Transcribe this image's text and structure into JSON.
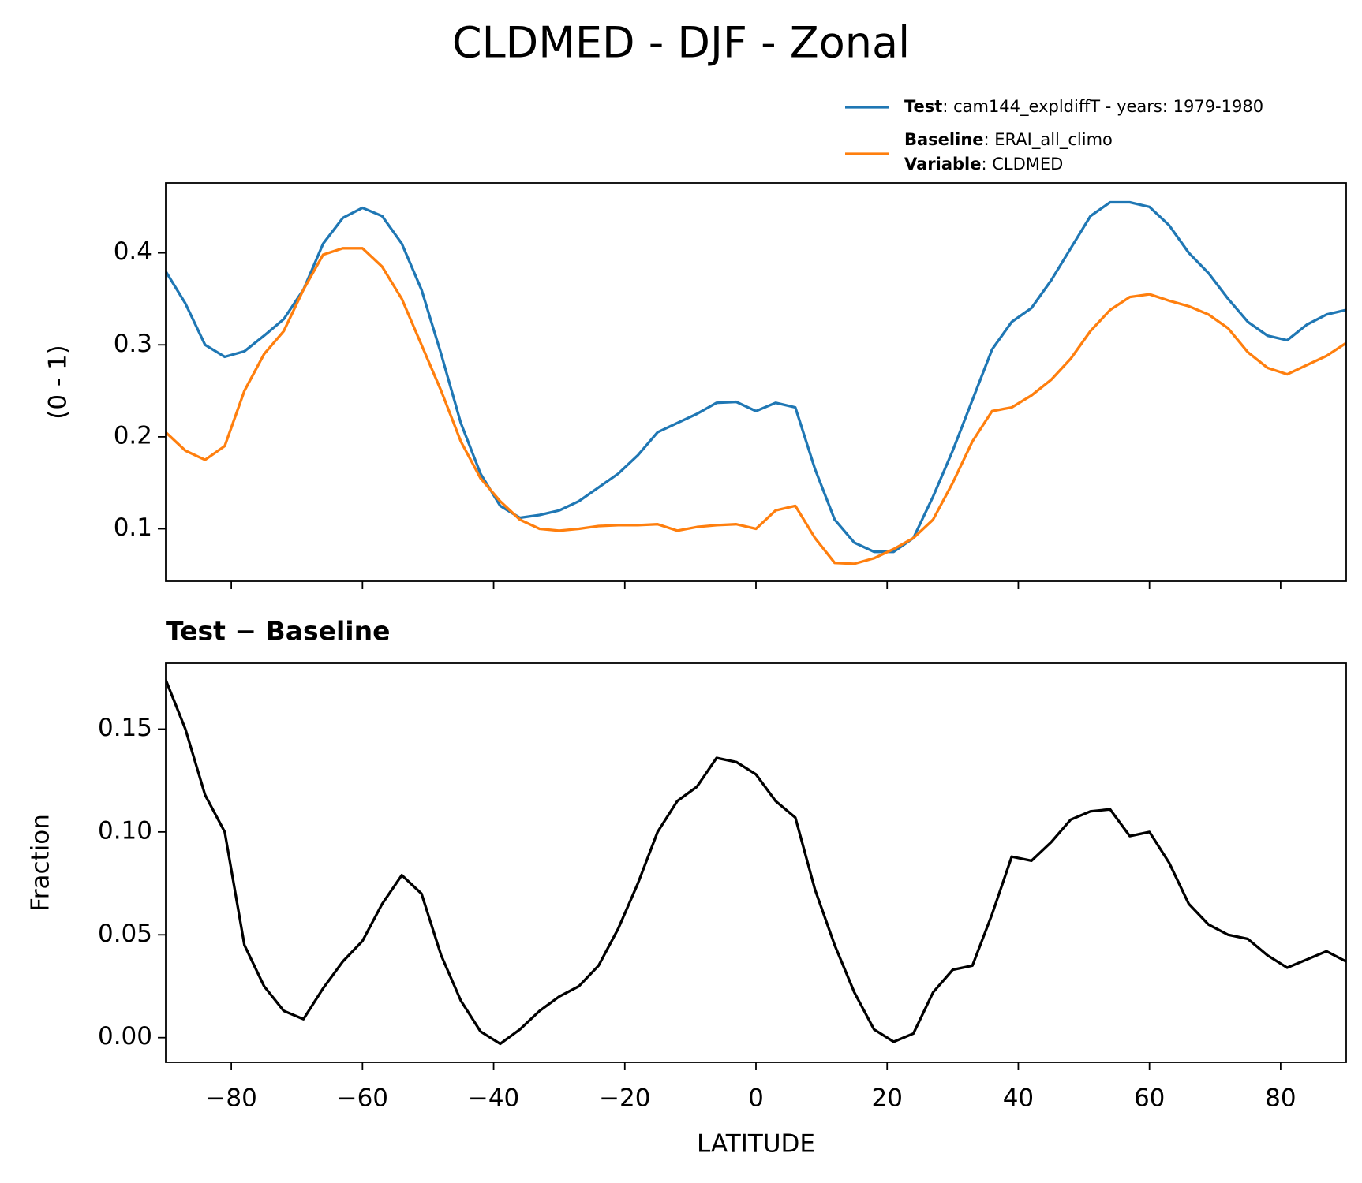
{
  "title": "CLDMED - DJF - Zonal",
  "chart_data": [
    {
      "type": "line",
      "ylabel": "(0 - 1)",
      "x": [
        -90,
        -87,
        -84,
        -81,
        -78,
        -75,
        -72,
        -69,
        -66,
        -63,
        -60,
        -57,
        -54,
        -51,
        -48,
        -45,
        -42,
        -39,
        -36,
        -33,
        -30,
        -27,
        -24,
        -21,
        -18,
        -15,
        -12,
        -9,
        -6,
        -3,
        0,
        3,
        6,
        9,
        12,
        15,
        18,
        21,
        24,
        27,
        30,
        33,
        36,
        39,
        42,
        45,
        48,
        51,
        54,
        57,
        60,
        63,
        66,
        69,
        72,
        75,
        78,
        81,
        84,
        87,
        90
      ],
      "series": [
        {
          "name": "Test",
          "label": ": cam144_expldiffT - years: 1979-1980",
          "color": "#1f77b4",
          "values": [
            0.38,
            0.345,
            0.3,
            0.287,
            0.293,
            0.31,
            0.328,
            0.36,
            0.41,
            0.438,
            0.449,
            0.44,
            0.41,
            0.36,
            0.29,
            0.215,
            0.16,
            0.125,
            0.112,
            0.115,
            0.12,
            0.13,
            0.145,
            0.16,
            0.18,
            0.205,
            0.215,
            0.225,
            0.237,
            0.238,
            0.228,
            0.237,
            0.232,
            0.165,
            0.11,
            0.085,
            0.075,
            0.075,
            0.09,
            0.135,
            0.185,
            0.24,
            0.295,
            0.325,
            0.34,
            0.37,
            0.405,
            0.44,
            0.455,
            0.455,
            0.45,
            0.43,
            0.4,
            0.378,
            0.35,
            0.325,
            0.31,
            0.305,
            0.322,
            0.333,
            0.338
          ]
        },
        {
          "name": "Baseline",
          "label": ": ERAI_all_climo",
          "color": "#ff7f0e",
          "values": [
            0.205,
            0.185,
            0.175,
            0.19,
            0.25,
            0.29,
            0.315,
            0.36,
            0.398,
            0.405,
            0.405,
            0.385,
            0.35,
            0.3,
            0.25,
            0.195,
            0.155,
            0.13,
            0.11,
            0.1,
            0.098,
            0.1,
            0.103,
            0.104,
            0.104,
            0.105,
            0.098,
            0.102,
            0.104,
            0.105,
            0.1,
            0.12,
            0.125,
            0.09,
            0.063,
            0.062,
            0.068,
            0.078,
            0.09,
            0.11,
            0.15,
            0.195,
            0.228,
            0.232,
            0.245,
            0.262,
            0.285,
            0.315,
            0.338,
            0.352,
            0.355,
            0.348,
            0.342,
            0.333,
            0.318,
            0.292,
            0.275,
            0.268,
            0.278,
            0.288,
            0.302
          ]
        }
      ],
      "legend_note": {
        "name": "Variable",
        "label": ": CLDMED"
      },
      "xlim": [
        -90,
        90
      ],
      "xticks": [
        -80,
        -60,
        -40,
        -20,
        0,
        20,
        40,
        60,
        80
      ],
      "ylim": [
        0.043,
        0.476
      ],
      "yticks": [
        0.1,
        0.2,
        0.3,
        0.4
      ]
    },
    {
      "type": "line",
      "title": "Test − Baseline",
      "ylabel": "Fraction",
      "xlabel": "LATITUDE",
      "x": [
        -90,
        -87,
        -84,
        -81,
        -78,
        -75,
        -72,
        -69,
        -66,
        -63,
        -60,
        -57,
        -54,
        -51,
        -48,
        -45,
        -42,
        -39,
        -36,
        -33,
        -30,
        -27,
        -24,
        -21,
        -18,
        -15,
        -12,
        -9,
        -6,
        -3,
        0,
        3,
        6,
        9,
        12,
        15,
        18,
        21,
        24,
        27,
        30,
        33,
        36,
        39,
        42,
        45,
        48,
        51,
        54,
        57,
        60,
        63,
        66,
        69,
        72,
        75,
        78,
        81,
        84,
        87,
        90
      ],
      "series": [
        {
          "color": "#000000",
          "values": [
            0.174,
            0.15,
            0.118,
            0.1,
            0.045,
            0.025,
            0.013,
            0.009,
            0.024,
            0.037,
            0.047,
            0.065,
            0.079,
            0.07,
            0.04,
            0.018,
            0.003,
            -0.003,
            0.004,
            0.013,
            0.02,
            0.025,
            0.035,
            0.053,
            0.075,
            0.1,
            0.115,
            0.122,
            0.136,
            0.134,
            0.128,
            0.115,
            0.107,
            0.072,
            0.045,
            0.022,
            0.004,
            -0.002,
            0.002,
            0.022,
            0.033,
            0.035,
            0.06,
            0.088,
            0.086,
            0.095,
            0.106,
            0.11,
            0.111,
            0.098,
            0.1,
            0.085,
            0.065,
            0.055,
            0.05,
            0.048,
            0.04,
            0.034,
            0.038,
            0.042,
            0.037
          ]
        }
      ],
      "xlim": [
        -90,
        90
      ],
      "xticks": [
        {
          "value": -80,
          "label": "−80"
        },
        {
          "value": -60,
          "label": "−60"
        },
        {
          "value": -40,
          "label": "−40"
        },
        {
          "value": -20,
          "label": "−20"
        },
        0,
        20,
        40,
        60,
        80
      ],
      "ylim": [
        -0.012,
        0.182
      ],
      "yticks": [
        {
          "value": 0,
          "label": "0.00"
        },
        {
          "value": 0.05,
          "label": "0.05"
        },
        {
          "value": 0.1,
          "label": "0.10"
        },
        {
          "value": 0.15,
          "label": "0.15"
        }
      ]
    }
  ]
}
